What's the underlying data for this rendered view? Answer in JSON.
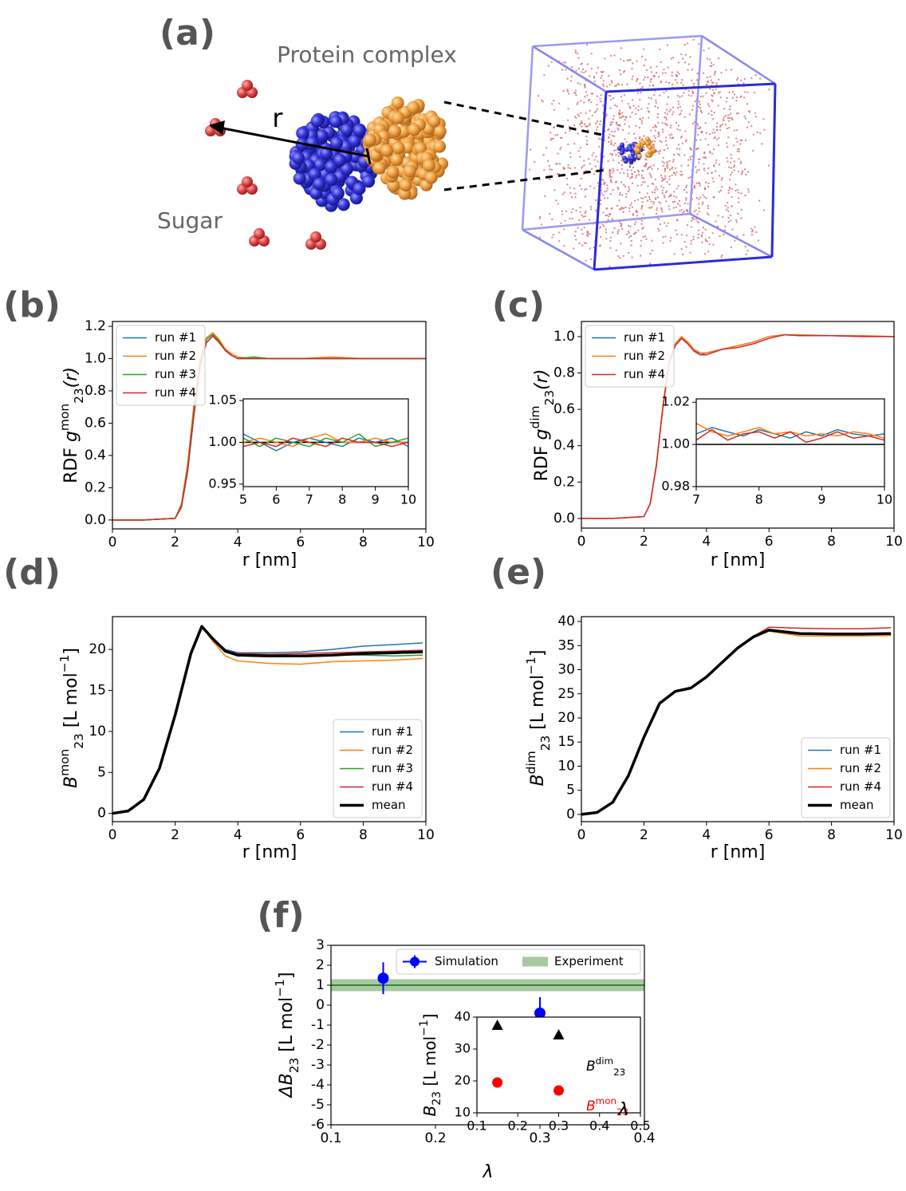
{
  "illustration": {
    "label": "(a)",
    "protein_label": "Protein complex",
    "sugar_label": "Sugar",
    "distance_label": "r"
  },
  "chart_data": [
    {
      "type": "line",
      "panel_label": "(b)",
      "x_label": "r [nm]",
      "y_label": [
        {
          "text": "RDF ",
          "style": "normal"
        },
        {
          "text": "g",
          "style": "italic"
        },
        {
          "text": "mon",
          "style": "sup"
        },
        {
          "text": "23",
          "style": "sub"
        },
        {
          "text": "(r)",
          "style": "italic"
        }
      ],
      "x": [
        0,
        1,
        2,
        2.2,
        2.4,
        2.6,
        2.8,
        3,
        3.2,
        3.4,
        3.6,
        3.8,
        4,
        4.5,
        5,
        6,
        7,
        8,
        9,
        10
      ],
      "series": [
        {
          "name": "run #1",
          "color": "#1f77b4",
          "values": [
            0,
            0,
            0.01,
            0.08,
            0.3,
            0.65,
            0.95,
            1.1,
            1.14,
            1.11,
            1.06,
            1.02,
            1.0,
            1.0,
            1.0,
            1.0,
            1.0,
            1.0,
            1.0,
            1.0
          ]
        },
        {
          "name": "run #2",
          "color": "#ff7f0e",
          "values": [
            0,
            0,
            0.01,
            0.1,
            0.35,
            0.72,
            1.0,
            1.13,
            1.16,
            1.12,
            1.06,
            1.03,
            1.01,
            1.0,
            1.0,
            1.0,
            1.01,
            1.0,
            1.0,
            1.0
          ]
        },
        {
          "name": "run #3",
          "color": "#2ca02c",
          "values": [
            0,
            0,
            0.01,
            0.09,
            0.32,
            0.68,
            0.97,
            1.12,
            1.15,
            1.11,
            1.05,
            1.02,
            1.0,
            1.01,
            1.0,
            1.0,
            1.0,
            1.0,
            1.0,
            1.0
          ]
        },
        {
          "name": "run #4",
          "color": "#d62728",
          "values": [
            0,
            0,
            0.01,
            0.08,
            0.31,
            0.66,
            0.96,
            1.1,
            1.14,
            1.1,
            1.05,
            1.02,
            1.0,
            1.0,
            1.0,
            1.0,
            1.0,
            1.0,
            1.0,
            1.0
          ]
        }
      ],
      "xlim": [
        0,
        10
      ],
      "ylim": [
        -0.055,
        1.23
      ],
      "xticks": [
        0,
        2,
        4,
        6,
        8,
        10
      ],
      "yticks": [
        {
          "value": 0,
          "label": "0.0"
        },
        0.2,
        0.4,
        0.6,
        0.8,
        {
          "value": 1,
          "label": "1.0"
        },
        1.2
      ],
      "legend": "upper left"
    },
    {
      "type": "line",
      "inset": true,
      "x": [
        5,
        5.5,
        6,
        6.5,
        7,
        7.5,
        8,
        8.5,
        9,
        9.5,
        10
      ],
      "series": [
        {
          "color": "#1f77b4",
          "values": [
            1.01,
            1.0,
            0.99,
            1.0,
            1.005,
            1.0,
            0.995,
            1.005,
            1.0,
            1.005,
            0.995
          ]
        },
        {
          "color": "#ff7f0e",
          "values": [
            1.0,
            1.005,
            1.0,
            0.995,
            1.005,
            1.01,
            1.0,
            1.0,
            1.005,
            1.0,
            1.0
          ]
        },
        {
          "color": "#2ca02c",
          "values": [
            1.005,
            0.995,
            1.005,
            1.0,
            0.995,
            1.005,
            1.0,
            1.01,
            0.995,
            1.0,
            1.005
          ]
        },
        {
          "color": "#d62728",
          "values": [
            0.995,
            1.0,
            0.995,
            1.005,
            1.0,
            0.995,
            1.005,
            1.0,
            1.0,
            0.995,
            1.0
          ]
        }
      ],
      "reference_line": 1,
      "xlim": [
        5,
        10
      ],
      "ylim": [
        0.947,
        1.052
      ],
      "xticks": [
        5,
        6,
        7,
        8,
        9,
        10
      ],
      "yticks": [
        0.95,
        {
          "value": 1,
          "label": "1.00"
        },
        1.05
      ]
    },
    {
      "type": "line",
      "panel_label": "(c)",
      "x_label": "r [nm]",
      "y_label": [
        {
          "text": "RDF ",
          "style": "normal"
        },
        {
          "text": "g",
          "style": "italic"
        },
        {
          "text": "dim",
          "style": "sup"
        },
        {
          "text": "23",
          "style": "sub"
        },
        {
          "text": "(r)",
          "style": "italic"
        }
      ],
      "x": [
        0,
        1,
        2,
        2.2,
        2.4,
        2.6,
        2.8,
        3,
        3.2,
        3.4,
        3.6,
        3.8,
        4,
        4.5,
        5,
        5.5,
        6,
        6.5,
        7,
        8,
        9,
        10
      ],
      "series": [
        {
          "name": "run #1",
          "color": "#1f77b4",
          "values": [
            0,
            0,
            0.01,
            0.08,
            0.3,
            0.6,
            0.85,
            0.95,
            0.99,
            0.97,
            0.93,
            0.9,
            0.91,
            0.93,
            0.95,
            0.97,
            1.0,
            1.01,
            1.005,
            1.005,
            1.0,
            1.0
          ]
        },
        {
          "name": "run #2",
          "color": "#ff7f0e",
          "values": [
            0,
            0,
            0.01,
            0.08,
            0.3,
            0.61,
            0.86,
            0.96,
            1.0,
            0.97,
            0.93,
            0.91,
            0.91,
            0.93,
            0.95,
            0.97,
            1.0,
            1.01,
            1.01,
            1.005,
            1.005,
            1.0
          ]
        },
        {
          "name": "run #4",
          "color": "#d62728",
          "values": [
            0,
            0,
            0.01,
            0.08,
            0.29,
            0.6,
            0.85,
            0.95,
            0.99,
            0.96,
            0.92,
            0.9,
            0.9,
            0.93,
            0.94,
            0.96,
            0.99,
            1.01,
            1.005,
            1.005,
            1.0,
            1.0
          ]
        }
      ],
      "xlim": [
        0,
        10
      ],
      "ylim": [
        -0.053,
        1.083
      ],
      "xticks": [
        0,
        2,
        4,
        6,
        8,
        10
      ],
      "yticks": [
        {
          "value": 0,
          "label": "0.0"
        },
        0.2,
        0.4,
        0.6,
        0.8,
        {
          "value": 1,
          "label": "1.0"
        }
      ],
      "legend": "upper left"
    },
    {
      "type": "line",
      "inset": true,
      "x": [
        7,
        7.25,
        7.5,
        7.75,
        8,
        8.25,
        8.5,
        8.75,
        9,
        9.25,
        9.5,
        9.75,
        10
      ],
      "series": [
        {
          "color": "#1f77b4",
          "values": [
            1.005,
            1.008,
            1.006,
            1.004,
            1.007,
            1.005,
            1.003,
            1.006,
            1.004,
            1.007,
            1.005,
            1.004,
            1.005
          ]
        },
        {
          "color": "#ff7f0e",
          "values": [
            1.01,
            1.006,
            1.004,
            1.006,
            1.008,
            1.005,
            1.006,
            1.004,
            1.005,
            1.004,
            1.006,
            1.005,
            1.003
          ]
        },
        {
          "color": "#d62728",
          "values": [
            1.002,
            1.007,
            1.002,
            1.005,
            1.006,
            1.003,
            1.006,
            1.001,
            1.003,
            1.006,
            1.003,
            1.004,
            1.002
          ]
        }
      ],
      "reference_line": 1,
      "xlim": [
        7,
        10
      ],
      "ylim": [
        0.98,
        1.0216
      ],
      "xticks": [
        7,
        8,
        9,
        10
      ],
      "yticks": [
        0.98,
        {
          "value": 1,
          "label": "1.00"
        },
        1.02
      ]
    },
    {
      "type": "line",
      "panel_label": "(d)",
      "x_label": "r [nm]",
      "y_label": [
        {
          "text": "B",
          "style": "italic"
        },
        {
          "text": "mon",
          "style": "sup"
        },
        {
          "text": "23",
          "style": "sub"
        },
        {
          "text": " [L mol",
          "style": "normal"
        },
        {
          "text": "−1",
          "style": "sup"
        },
        {
          "text": "]",
          "style": "normal"
        }
      ],
      "x": [
        0,
        0.5,
        1,
        1.5,
        2,
        2.5,
        2.85,
        3.2,
        3.6,
        4,
        5,
        6,
        7,
        8,
        9,
        9.9
      ],
      "series": [
        {
          "name": "run #1",
          "color": "#1f77b4",
          "values": [
            0,
            0.3,
            1.7,
            5.5,
            12,
            19.5,
            22.8,
            21.4,
            20.0,
            19.6,
            19.6,
            19.7,
            20.0,
            20.4,
            20.6,
            20.8
          ]
        },
        {
          "name": "run #2",
          "color": "#ff7f0e",
          "values": [
            0,
            0.3,
            1.7,
            5.5,
            12,
            19.5,
            22.8,
            21.0,
            19.2,
            18.6,
            18.3,
            18.2,
            18.5,
            18.6,
            18.7,
            18.9
          ]
        },
        {
          "name": "run #3",
          "color": "#2ca02c",
          "values": [
            0,
            0.3,
            1.7,
            5.5,
            12,
            19.5,
            22.8,
            21.3,
            19.8,
            19.3,
            19.2,
            19.3,
            19.4,
            19.3,
            19.2,
            19.3
          ]
        },
        {
          "name": "run #4",
          "color": "#d62728",
          "values": [
            0,
            0.3,
            1.7,
            5.5,
            12,
            19.5,
            22.8,
            21.4,
            19.9,
            19.5,
            19.4,
            19.5,
            19.6,
            19.7,
            19.8,
            19.9
          ]
        },
        {
          "name": "mean",
          "color": "#000000",
          "width": 3.5,
          "values": [
            0,
            0.3,
            1.7,
            5.5,
            12,
            19.5,
            22.8,
            21.3,
            19.8,
            19.3,
            19.2,
            19.2,
            19.3,
            19.5,
            19.6,
            19.7
          ]
        }
      ],
      "xlim": [
        0,
        10
      ],
      "ylim": [
        -1,
        24
      ],
      "xticks": [
        0,
        2,
        4,
        6,
        8,
        10
      ],
      "yticks": [
        0,
        5,
        10,
        15,
        20
      ],
      "legend": "lower right"
    },
    {
      "type": "line",
      "panel_label": "(e)",
      "x_label": "r [nm]",
      "y_label": [
        {
          "text": "B",
          "style": "italic"
        },
        {
          "text": "dim",
          "style": "sup"
        },
        {
          "text": "23",
          "style": "sub"
        },
        {
          "text": " [L mol",
          "style": "normal"
        },
        {
          "text": "−1",
          "style": "sup"
        },
        {
          "text": "]",
          "style": "normal"
        }
      ],
      "x": [
        0,
        0.5,
        1,
        1.5,
        2,
        2.5,
        3,
        3.5,
        4,
        4.5,
        5,
        5.5,
        6,
        7,
        8,
        9,
        9.9
      ],
      "series": [
        {
          "name": "run #1",
          "color": "#1f77b4",
          "values": [
            0,
            0.4,
            2.5,
            8,
            16,
            23,
            25.5,
            26.2,
            28.5,
            31.5,
            34.5,
            36.8,
            38.2,
            37.6,
            37.5,
            37.5,
            37.6
          ]
        },
        {
          "name": "run #2",
          "color": "#ff7f0e",
          "values": [
            0,
            0.4,
            2.5,
            8,
            16,
            23,
            25.5,
            26.2,
            28.5,
            31.5,
            34.5,
            36.8,
            38.0,
            37.0,
            37.0,
            37.0,
            37.1
          ]
        },
        {
          "name": "run #4",
          "color": "#d62728",
          "values": [
            0,
            0.4,
            2.5,
            8,
            16,
            23,
            25.5,
            26.2,
            28.5,
            31.5,
            34.5,
            36.9,
            38.8,
            38.6,
            38.5,
            38.5,
            38.7
          ]
        },
        {
          "name": "mean",
          "color": "#000000",
          "width": 3.5,
          "values": [
            0,
            0.4,
            2.5,
            8,
            16,
            23,
            25.5,
            26.2,
            28.5,
            31.5,
            34.5,
            36.8,
            38.2,
            37.5,
            37.4,
            37.4,
            37.5
          ]
        }
      ],
      "xlim": [
        0,
        10
      ],
      "ylim": [
        -1.5,
        41
      ],
      "xticks": [
        0,
        2,
        4,
        6,
        8,
        10
      ],
      "yticks": [
        0,
        5,
        10,
        15,
        20,
        25,
        30,
        35,
        40
      ],
      "legend": "lower right"
    },
    {
      "type": "errorbar",
      "panel_label": "(f)",
      "x_label": "λ",
      "y_label": [
        {
          "text": "ΔB",
          "style": "italic"
        },
        {
          "text": "23",
          "style": "sub"
        },
        {
          "text": " [L mol",
          "style": "normal"
        },
        {
          "text": "−1",
          "style": "sup"
        },
        {
          "text": "]",
          "style": "normal"
        }
      ],
      "x": [
        0.15,
        0.3
      ],
      "series": [
        {
          "name": "Simulation",
          "color": "#0000ff",
          "values": [
            1.35,
            -0.4
          ],
          "errors": [
            0.8,
            0.8
          ]
        }
      ],
      "reference": {
        "name": "Experiment",
        "value": 1.0,
        "band": [
          0.7,
          1.3
        ],
        "color": "#2e8b2e",
        "band_color": "#a8c8a2"
      },
      "xlim": [
        0.1,
        0.4
      ],
      "ylim": [
        -6,
        3
      ],
      "xticks": [
        0.1,
        0.2,
        0.3,
        0.4
      ],
      "yticks": [
        -6,
        -5,
        -4,
        -3,
        -2,
        -1,
        0,
        1,
        2,
        3
      ],
      "legend": "upper right",
      "legend_ncol": 2
    },
    {
      "type": "scatter",
      "inset": true,
      "x_label": "λ",
      "y_label": [
        {
          "text": "B",
          "style": "italic"
        },
        {
          "text": "23",
          "style": "sub"
        },
        {
          "text": " [L mol",
          "style": "normal"
        },
        {
          "text": "−1",
          "style": "sup"
        },
        {
          "text": "]",
          "style": "normal"
        }
      ],
      "x": [
        0.15,
        0.3
      ],
      "series": [
        {
          "name": [
            {
              "text": "B",
              "style": "italic"
            },
            {
              "text": "dim",
              "style": "sup"
            },
            {
              "text": "23",
              "style": "sub"
            }
          ],
          "color": "#000000",
          "marker": "triangle",
          "values": [
            37.5,
            34.5
          ]
        },
        {
          "name": [
            {
              "text": "B",
              "style": "italic"
            },
            {
              "text": "mon",
              "style": "sup"
            },
            {
              "text": "23",
              "style": "sub"
            }
          ],
          "color": "#ff0000",
          "marker": "circle",
          "values": [
            19.5,
            17
          ]
        }
      ],
      "xlim": [
        0.1,
        0.5
      ],
      "ylim": [
        10,
        40
      ],
      "xticks": [
        0.1,
        0.2,
        0.3,
        0.4,
        0.5
      ],
      "yticks": [
        10,
        20,
        30,
        40
      ]
    }
  ]
}
